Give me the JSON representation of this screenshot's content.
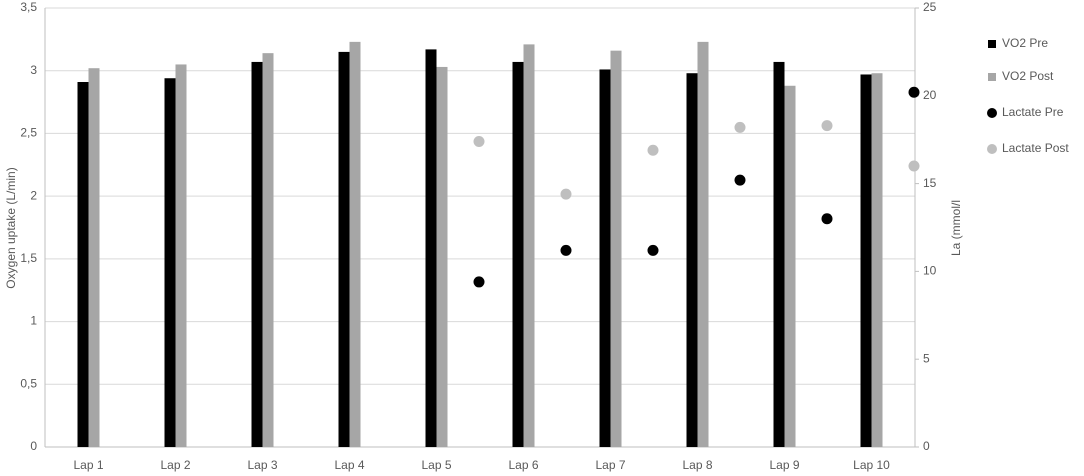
{
  "chart_data": {
    "type": "bar",
    "categories": [
      "Lap 1",
      "Lap 2",
      "Lap 3",
      "Lap 4",
      "Lap 5",
      "Lap 6",
      "Lap 7",
      "Lap 8",
      "Lap 9",
      "Lap 10"
    ],
    "y_label": "Oxygen uptake (L/min)",
    "y2_label": "La (mmol/l",
    "ylim": [
      0,
      3.5
    ],
    "yticks": [
      0,
      {
        "value": 0.5,
        "label": "0,5"
      },
      1,
      {
        "value": 1.5,
        "label": "1,5"
      },
      2,
      {
        "value": 2.5,
        "label": "2,5"
      },
      3,
      {
        "value": 3.5,
        "label": "3,5"
      }
    ],
    "y2lim": [
      0,
      25
    ],
    "y2ticks": [
      0,
      5,
      10,
      15,
      20,
      25
    ],
    "grid": true,
    "legend": "right",
    "series": [
      {
        "name": "VO2 Pre",
        "type": "bar",
        "color": "#000000",
        "values": [
          2.91,
          2.94,
          3.07,
          3.15,
          3.17,
          3.07,
          3.01,
          2.98,
          3.07,
          2.97
        ]
      },
      {
        "name": "VO2 Post",
        "type": "bar",
        "color": "#a6a6a6",
        "values": [
          3.02,
          3.05,
          3.14,
          3.23,
          3.03,
          3.21,
          3.16,
          3.23,
          2.88,
          2.98
        ]
      },
      {
        "name": "Lactate Pre",
        "type": "scatter",
        "axis": "y2",
        "color": "#000000",
        "values": [
          null,
          null,
          null,
          null,
          9.4,
          11.2,
          11.2,
          15.2,
          13.0,
          20.2
        ]
      },
      {
        "name": "Lactate Post",
        "type": "scatter",
        "axis": "y2",
        "color": "#bfbfbf",
        "values": [
          null,
          null,
          null,
          null,
          17.4,
          14.4,
          16.9,
          18.2,
          18.3,
          16.0
        ]
      }
    ]
  }
}
